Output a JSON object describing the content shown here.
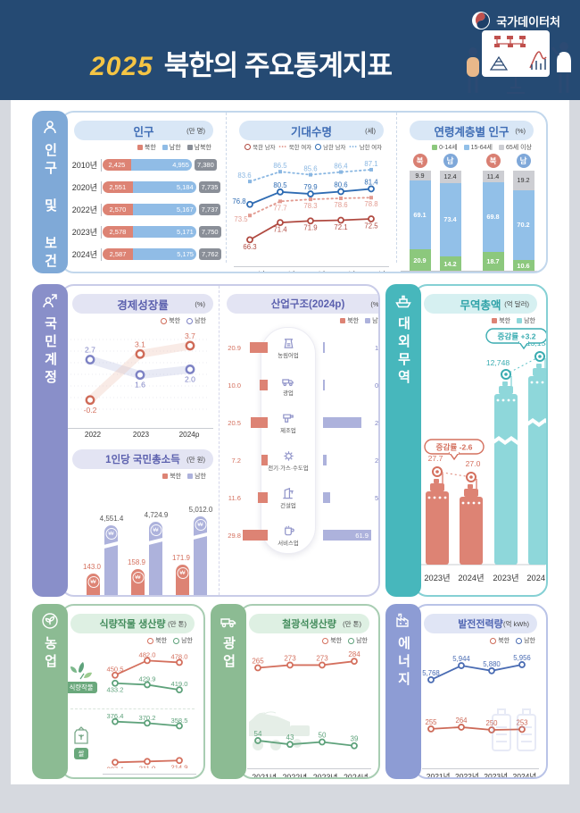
{
  "header": {
    "logo_text": "국가데이터처",
    "year": "2025",
    "title": "북한의 주요통계지표"
  },
  "sections": [
    {
      "label": "인구 및 보건",
      "icon": "person-health-icon"
    },
    {
      "label": "국민계정",
      "icon": "person-growth-icon"
    },
    {
      "label": "대외무역",
      "icon": "ship-icon"
    },
    {
      "label": "농업",
      "icon": "sprout-icon"
    },
    {
      "label": "광업",
      "icon": "truck-icon"
    },
    {
      "label": "에너지",
      "icon": "factory-icon"
    }
  ],
  "colors": {
    "header_navy": "#254a73",
    "accent_yellow": "#f5c544",
    "nk_red": "#dd8374",
    "nk_red_deep": "#b04a41",
    "nk_red_soft": "#e29a90",
    "nk_label": "#d4705e",
    "sk_blue": "#90bce6",
    "sk_blue_deep": "#2f6cb3",
    "sk_blue_soft": "#8ab7e2",
    "total_gray": "#8a8f98",
    "age_green": "#8cc87d",
    "age_blue": "#92c0e8",
    "age_gray": "#cdced3",
    "purple_bar": "#adb2dc",
    "purple_deep": "#7d82c4",
    "teal_bar": "#8ed7da",
    "teal_deep": "#3aacb1",
    "green_line": "#5ea27b",
    "peri_line": "#4a6cb3"
  },
  "chart_data": [
    {
      "id": "population",
      "type": "bar",
      "title": "인구",
      "unit": "(만 명)",
      "legend": [
        "북한",
        "남한",
        "남북한"
      ],
      "categories": [
        "2010년",
        "2020년",
        "2022년",
        "2023년",
        "2024년"
      ],
      "series": [
        {
          "name": "북한",
          "values": [
            "2,425",
            "2,551",
            "2,570",
            "2,578",
            "2,587"
          ]
        },
        {
          "name": "남한",
          "values": [
            "4,955",
            "5,184",
            "5,167",
            "5,171",
            "5,175"
          ]
        },
        {
          "name": "남북한",
          "values": [
            "7,380",
            "7,735",
            "7,737",
            "7,750",
            "7,762"
          ]
        }
      ]
    },
    {
      "id": "life_expectancy",
      "type": "line",
      "title": "기대수명",
      "unit": "(세)",
      "legend": [
        "북한 남자",
        "북한 여자",
        "남한 남자",
        "남한 여자"
      ],
      "categories": [
        "2010년",
        "2020년",
        "2022년",
        "2023년",
        "2024년"
      ],
      "ylim": [
        64,
        90
      ],
      "series": [
        {
          "name": "북한 남자",
          "values": [
            "66.3",
            "71.4",
            "71.9",
            "72.1",
            "72.5"
          ]
        },
        {
          "name": "북한 여자",
          "values": [
            "73.5",
            "77.7",
            "78.3",
            "78.6",
            "78.8"
          ]
        },
        {
          "name": "남한 남자",
          "values": [
            "76.8",
            "80.5",
            "79.9",
            "80.6",
            "81.4"
          ]
        },
        {
          "name": "남한 여자",
          "values": [
            "83.6",
            "86.5",
            "85.6",
            "86.4",
            "87.1"
          ]
        }
      ]
    },
    {
      "id": "age_structure",
      "type": "bar",
      "title": "연령계층별 인구",
      "unit": "(%)",
      "legend": [
        "0-14세",
        "15-64세",
        "65세 이상"
      ],
      "groups": [
        {
          "year": "2014년",
          "bars": [
            {
              "badge": "북",
              "young": "20.9",
              "working": "69.1",
              "old": "9.9"
            },
            {
              "badge": "남",
              "young": "14.2",
              "working": "73.4",
              "old": "12.4"
            }
          ]
        },
        {
          "year": "2024년",
          "bars": [
            {
              "badge": "북",
              "young": "18.7",
              "working": "69.8",
              "old": "11.4"
            },
            {
              "badge": "남",
              "young": "10.6",
              "working": "70.2",
              "old": "19.2"
            }
          ]
        }
      ]
    },
    {
      "id": "growth",
      "type": "line",
      "title": "경제성장률",
      "unit": "(%)",
      "legend": [
        "북한",
        "남한"
      ],
      "categories": [
        "2022",
        "2023",
        "2024p"
      ],
      "ylim": [
        -1.0,
        4.4
      ],
      "series": [
        {
          "name": "북한",
          "values": [
            "-0.2",
            "3.1",
            "3.7"
          ]
        },
        {
          "name": "남한",
          "values": [
            "2.7",
            "1.6",
            "2.0"
          ]
        }
      ]
    },
    {
      "id": "gni",
      "type": "bar",
      "title": "1인당 국민총소득",
      "unit": "(만 원)",
      "legend": [
        "북한",
        "남한"
      ],
      "categories": [
        "2022",
        "2023",
        "2024p"
      ],
      "series": [
        {
          "name": "북한",
          "values": [
            "143.0",
            "158.9",
            "171.9"
          ]
        },
        {
          "name": "남한",
          "values": [
            "4,551.4",
            "4,724.9",
            "5,012.0"
          ]
        }
      ]
    },
    {
      "id": "industry",
      "type": "bar",
      "title": "산업구조(2024p)",
      "unit": "(%)",
      "legend": [
        "북한",
        "남한"
      ],
      "rows": [
        {
          "label": "농림어업",
          "icon": "farming-icon",
          "nk": "20.9",
          "sk": "1.6"
        },
        {
          "label": "광업",
          "icon": "mining-truck-icon",
          "nk": "10.0",
          "sk": "0.1"
        },
        {
          "label": "제조업",
          "icon": "drill-icon",
          "nk": "20.5",
          "sk": "28.7"
        },
        {
          "label": "전기·가스·수도업",
          "icon": "gear-icon",
          "nk": "7.2",
          "sk": "2.6"
        },
        {
          "label": "건설업",
          "icon": "crane-icon",
          "nk": "11.6",
          "sk": "5.2"
        },
        {
          "label": "서비스업",
          "icon": "cup-icon",
          "nk": "29.8",
          "sk": "61.9"
        }
      ]
    },
    {
      "id": "trade",
      "type": "bar",
      "title": "무역총액",
      "unit": "(억 달러)",
      "legend": [
        "북한",
        "남한"
      ],
      "categories": [
        "2023년",
        "2024년",
        "2023년",
        "2024년"
      ],
      "callouts": [
        "증감률 -2.6",
        "증감률 +3.2"
      ],
      "series": [
        {
          "name": "북한",
          "values": [
            "27.7",
            "27.0"
          ]
        },
        {
          "name": "남한",
          "values": [
            "12,748",
            "13,154"
          ]
        }
      ]
    },
    {
      "id": "food_crops",
      "type": "line",
      "title": "식량작물 생산량",
      "unit": "(만 톤)",
      "legend": [
        "북한",
        "남한"
      ],
      "categories": [
        "2022년",
        "2023년",
        "2024년"
      ],
      "subcharts": [
        {
          "badge": "식량작물",
          "series": [
            {
              "name": "북한",
              "values": [
                "450.5",
                "482.0",
                "478.0"
              ]
            },
            {
              "name": "남한",
              "values": [
                "433.2",
                "429.9",
                "419.0"
              ]
            }
          ]
        },
        {
          "badge": "쌀",
          "series": [
            {
              "name": "남한",
              "values": [
                "376.4",
                "370.2",
                "358.5"
              ]
            },
            {
              "name": "북한",
              "values": [
                "207.4",
                "211.0",
                "214.9"
              ]
            }
          ]
        }
      ]
    },
    {
      "id": "iron_ore",
      "type": "line",
      "title": "철광석생산량",
      "unit": "(만 톤)",
      "legend": [
        "북한",
        "남한"
      ],
      "categories": [
        "2021년",
        "2022년",
        "2023년",
        "2024년"
      ],
      "series": [
        {
          "name": "북한",
          "values": [
            "265",
            "273",
            "273",
            "284"
          ]
        },
        {
          "name": "남한",
          "values": [
            "54",
            "43",
            "50",
            "39"
          ]
        }
      ]
    },
    {
      "id": "electricity",
      "type": "line",
      "title": "발전전력량",
      "unit": "(억 kWh)",
      "legend": [
        "북한",
        "남한"
      ],
      "categories": [
        "2021년",
        "2022년",
        "2023년",
        "2024년"
      ],
      "series": [
        {
          "name": "북한",
          "values": [
            "255",
            "264",
            "250",
            "253"
          ]
        },
        {
          "name": "남한",
          "values": [
            "5,768",
            "5,944",
            "5,880",
            "5,956"
          ]
        }
      ]
    }
  ]
}
